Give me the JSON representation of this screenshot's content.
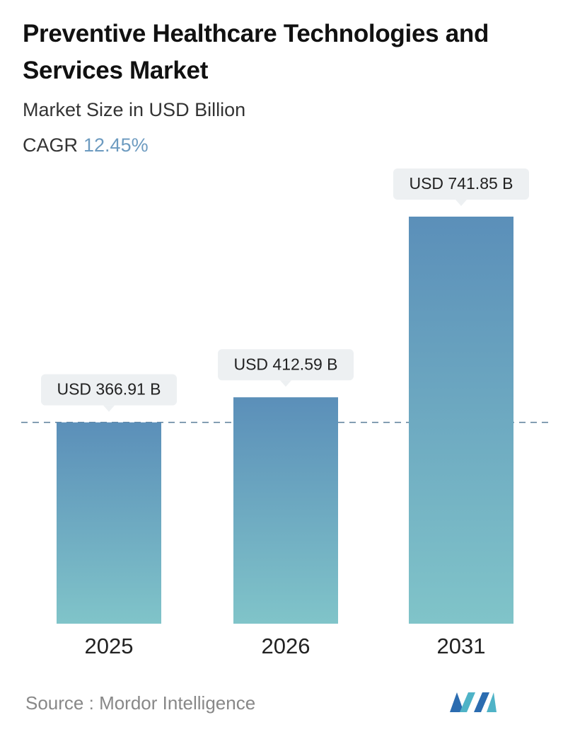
{
  "chart_data": {
    "type": "bar",
    "title": "Preventive Healthcare Technologies and Services Market",
    "subtitle": "Market Size in USD Billion",
    "cagr_label": "CAGR",
    "cagr_value": "12.45%",
    "categories": [
      "2025",
      "2026",
      "2031"
    ],
    "values": [
      366.91,
      412.59,
      741.85
    ],
    "value_labels": [
      "USD 366.91 B",
      "USD 412.59 B",
      "USD 741.85 B"
    ],
    "color_top": "#5b8fb9",
    "color_bottom": "#80c4c9",
    "source_label": "Source :",
    "source": "Mordor Intelligence"
  }
}
